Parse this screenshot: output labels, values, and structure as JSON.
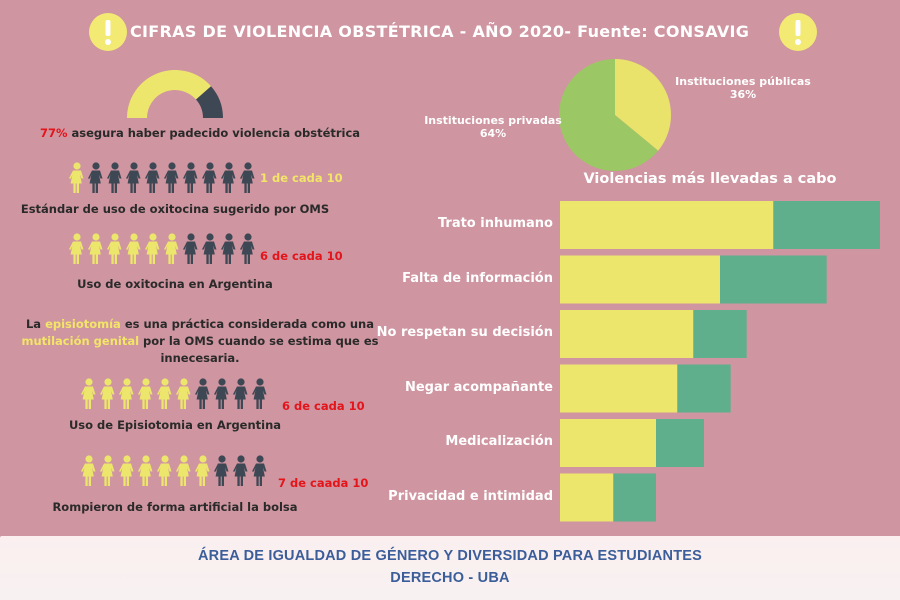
{
  "title": "CIFRAS DE VIOLENCIA OBSTÉTRICA - AÑO 2020- Fuente: CONSAVIG",
  "gauge": {
    "fraction": 0.77,
    "percent_text": "77%",
    "description": " asegura haber padecido violencia obstétrica"
  },
  "people_rows": [
    {
      "highlighted": 1,
      "total": 10,
      "label": "1 de cada 10",
      "caption": "Estándar de uso de oxitocina sugerido por OMS"
    },
    {
      "highlighted": 6,
      "total": 10,
      "label": "6 de cada 10",
      "caption": "Uso de oxitocina en Argentina"
    },
    {
      "highlighted": 6,
      "total": 10,
      "label": "6 de cada 10",
      "caption": "Uso de Episiotomia en Argentina"
    },
    {
      "highlighted": 7,
      "total": 10,
      "label": "7 de caada 10",
      "caption": "Rompieron de forma artificial la bolsa"
    }
  ],
  "episiotomia_note": {
    "p1": "La ",
    "h1": "episiotomía",
    "p2": " es una práctica considerada como una",
    "h2": "mutilación genital",
    "p3": " por la OMS cuando se estima que es",
    "p4": "innecesaria."
  },
  "colors": {
    "background": "#cf95a0",
    "yellow": "#ede66c",
    "green": "#5fae8c",
    "dark": "#3e4854",
    "pie_green": "#9cc765",
    "pie_yellow": "#e9e36b",
    "red_text": "#e4141b",
    "footer_text": "#3b5e9a"
  },
  "chart_data": [
    {
      "type": "pie",
      "slices": [
        {
          "name": "Instituciones  públicas",
          "value": 36,
          "label": "36%"
        },
        {
          "name": "Instituciones privadas",
          "value": 64,
          "label": "64%"
        }
      ]
    },
    {
      "type": "bar",
      "orientation": "horizontal",
      "stacked": true,
      "title": "Violencias más llevadas a cabo",
      "categories": [
        "Trato inhumano",
        "Falta de información",
        "No respetan su decisión",
        "Negar acompañante",
        "Medicalización",
        "Privacidad e intimidad"
      ],
      "series": [
        {
          "values": [
            40,
            30,
            25,
            22,
            18,
            10
          ]
        },
        {
          "values": [
            20,
            20,
            10,
            10,
            9,
            8
          ]
        }
      ],
      "xlim": [
        0,
        60
      ]
    }
  ],
  "footer": {
    "line1": "ÁREA DE IGUALDAD DE GÉNERO Y DIVERSIDAD PARA ESTUDIANTES",
    "line2": "DERECHO - UBA"
  }
}
